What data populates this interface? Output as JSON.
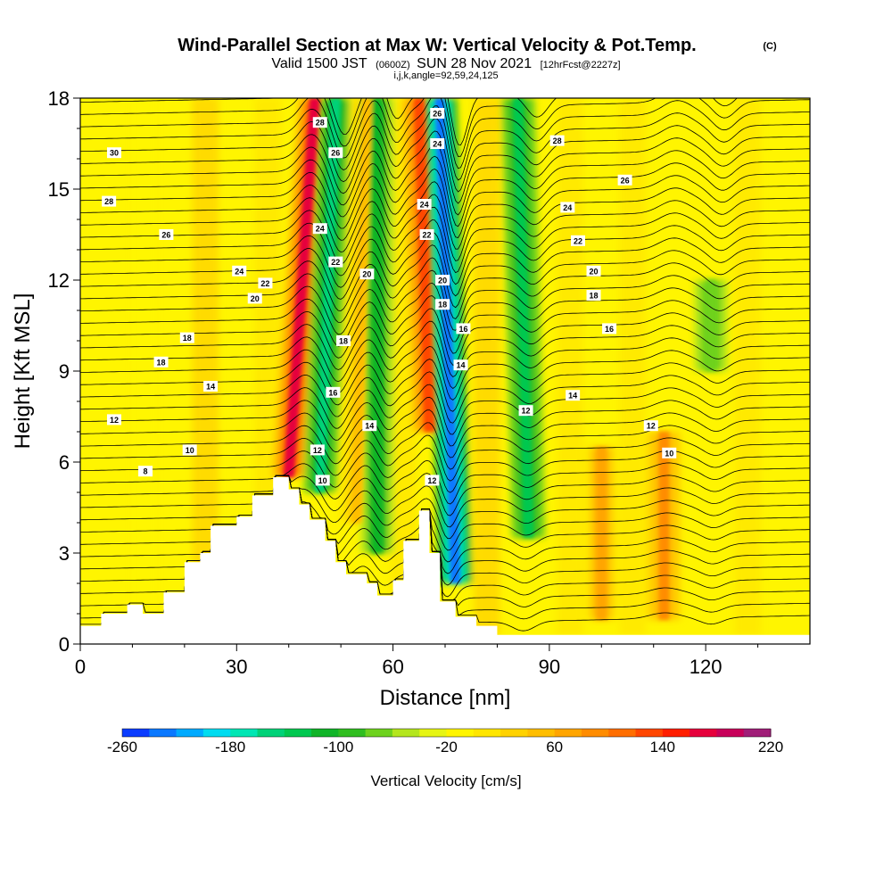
{
  "header": {
    "title": "Wind-Parallel Section at Max W: Vertical Velocity & Pot.Temp.",
    "title_tag": "(C)",
    "valid_prefix": "Valid 1500 JST",
    "valid_utc": "(0600Z)",
    "valid_date": "SUN 28 Nov 2021",
    "forecast": "[12hrFcst@2227z]",
    "indices": "i,j,k,angle=92,59,24,125"
  },
  "chart_data": {
    "type": "heatmap",
    "title": "Wind-Parallel Section at Max W: Vertical Velocity & Pot.Temp.",
    "xlabel": "Distance [nm]",
    "ylabel": "Height [Kft MSL]",
    "xlim": [
      0,
      140
    ],
    "ylim": [
      0,
      18
    ],
    "xticks": [
      0,
      30,
      60,
      90,
      120
    ],
    "yticks": [
      0,
      3,
      6,
      9,
      12,
      15,
      18
    ],
    "xtick_labels": [
      "0",
      "30",
      "60",
      "90",
      "120"
    ],
    "ytick_labels": [
      "0",
      "3",
      "6",
      "9",
      "12",
      "15",
      "18"
    ],
    "colorbar": {
      "label": "Vertical Velocity [cm/s]",
      "min": -260,
      "max": 220,
      "step": 20,
      "tick_values": [
        -260,
        -180,
        -100,
        -20,
        60,
        140,
        220
      ],
      "tick_labels": [
        "-260",
        "-180",
        "-100",
        "-20",
        "60",
        "140",
        "220"
      ],
      "colors": [
        "#0000ff",
        "#0a3cff",
        "#0a78ff",
        "#00aaff",
        "#00dcf0",
        "#00e6b4",
        "#00d278",
        "#00c850",
        "#10b428",
        "#30be20",
        "#6ed21e",
        "#b4e61e",
        "#e6f514",
        "#fff500",
        "#ffe600",
        "#ffd200",
        "#ffbe00",
        "#ffa500",
        "#ff8c00",
        "#ff6e00",
        "#ff4600",
        "#ff1e00",
        "#e6003c",
        "#c8005a",
        "#a01e78",
        "#6e1e82"
      ]
    },
    "terrain_profile": {
      "x": [
        0,
        4,
        4,
        9,
        9,
        12,
        12,
        16,
        16,
        20,
        20,
        23,
        23,
        25,
        25,
        30,
        30,
        33,
        33,
        37,
        37,
        40,
        40,
        42,
        42,
        44,
        44,
        47,
        47,
        49,
        49,
        51,
        51,
        55,
        55,
        57,
        57,
        60,
        60,
        62,
        62,
        65,
        65,
        67,
        67,
        69,
        69,
        72,
        72,
        76,
        76,
        80,
        80,
        140
      ],
      "height": [
        0.6,
        0.6,
        1.0,
        1.0,
        1.3,
        1.3,
        1.0,
        1.0,
        1.7,
        1.7,
        2.7,
        2.7,
        3.0,
        3.0,
        3.9,
        3.9,
        4.2,
        4.2,
        4.9,
        4.9,
        5.5,
        5.5,
        5.1,
        5.1,
        4.6,
        4.6,
        4.1,
        4.1,
        3.4,
        3.4,
        2.7,
        2.7,
        2.3,
        2.3,
        2.0,
        2.0,
        1.6,
        1.6,
        2.1,
        2.1,
        3.4,
        3.4,
        4.4,
        4.4,
        3.0,
        3.0,
        1.4,
        1.4,
        0.9,
        0.9,
        0.6,
        0.6,
        0.3,
        0.3
      ]
    },
    "vertical_velocity_features": [
      {
        "name": "updraft",
        "x_base": 40,
        "x_top": 45,
        "y_range": [
          5.5,
          18
        ],
        "w_peak": 180
      },
      {
        "name": "downdraft",
        "x_base": 46,
        "x_top": 49,
        "y_range": [
          5.0,
          18
        ],
        "w_peak": -140
      },
      {
        "name": "updraft",
        "x_base": 53,
        "x_top": 55,
        "y_range": [
          4.0,
          18
        ],
        "w_peak": 60
      },
      {
        "name": "downdraft",
        "x_base": 57,
        "x_top": 57,
        "y_range": [
          3.0,
          18
        ],
        "w_peak": -90
      },
      {
        "name": "updraft",
        "x_base": 67,
        "x_top": 65,
        "y_range": [
          7.0,
          18
        ],
        "w_peak": 150
      },
      {
        "name": "downdraft",
        "x_base": 72,
        "x_top": 69,
        "y_range": [
          2.0,
          18
        ],
        "w_peak": -220
      },
      {
        "name": "downdraft",
        "x_base": 86,
        "x_top": 84,
        "y_range": [
          3.5,
          18
        ],
        "w_peak": -110
      },
      {
        "name": "updraft",
        "x_base": 100,
        "x_top": 100,
        "y_range": [
          0.8,
          6.5
        ],
        "w_peak": 90
      },
      {
        "name": "updraft",
        "x_base": 112,
        "x_top": 112,
        "y_range": [
          0.8,
          7.0
        ],
        "w_peak": 110
      },
      {
        "name": "downdraft",
        "x_base": 121,
        "x_top": 121,
        "y_range": [
          9.0,
          12.0
        ],
        "w_peak": -60
      }
    ],
    "potential_temperature_contours": {
      "interval": 1,
      "labels": [
        {
          "text": "30",
          "x": 6.5,
          "y": 16.2
        },
        {
          "text": "28",
          "x": 5.5,
          "y": 14.6
        },
        {
          "text": "26",
          "x": 16.5,
          "y": 13.5
        },
        {
          "text": "24",
          "x": 30.5,
          "y": 12.3
        },
        {
          "text": "22",
          "x": 35.5,
          "y": 11.9
        },
        {
          "text": "20",
          "x": 33.5,
          "y": 11.4
        },
        {
          "text": "18",
          "x": 20.5,
          "y": 10.1
        },
        {
          "text": "18",
          "x": 15.5,
          "y": 9.3
        },
        {
          "text": "14",
          "x": 25.0,
          "y": 8.5
        },
        {
          "text": "12",
          "x": 6.5,
          "y": 7.4
        },
        {
          "text": "10",
          "x": 21.0,
          "y": 6.4
        },
        {
          "text": "8",
          "x": 12.5,
          "y": 5.7
        },
        {
          "text": "28",
          "x": 46.0,
          "y": 17.2
        },
        {
          "text": "26",
          "x": 49.0,
          "y": 16.2
        },
        {
          "text": "24",
          "x": 46.0,
          "y": 13.7
        },
        {
          "text": "22",
          "x": 49.0,
          "y": 12.6
        },
        {
          "text": "20",
          "x": 55.0,
          "y": 12.2
        },
        {
          "text": "18",
          "x": 50.5,
          "y": 10.0
        },
        {
          "text": "16",
          "x": 48.5,
          "y": 8.3
        },
        {
          "text": "14",
          "x": 55.5,
          "y": 7.2
        },
        {
          "text": "12",
          "x": 45.5,
          "y": 6.4
        },
        {
          "text": "10",
          "x": 46.5,
          "y": 5.4
        },
        {
          "text": "26",
          "x": 68.5,
          "y": 17.5
        },
        {
          "text": "24",
          "x": 68.5,
          "y": 16.5
        },
        {
          "text": "24",
          "x": 66.0,
          "y": 14.5
        },
        {
          "text": "22",
          "x": 66.5,
          "y": 13.5
        },
        {
          "text": "20",
          "x": 69.5,
          "y": 12.0
        },
        {
          "text": "18",
          "x": 69.5,
          "y": 11.2
        },
        {
          "text": "16",
          "x": 73.5,
          "y": 10.4
        },
        {
          "text": "14",
          "x": 73.0,
          "y": 9.2
        },
        {
          "text": "12",
          "x": 67.5,
          "y": 5.4
        },
        {
          "text": "12",
          "x": 85.5,
          "y": 7.7
        },
        {
          "text": "28",
          "x": 91.5,
          "y": 16.6
        },
        {
          "text": "26",
          "x": 104.5,
          "y": 15.3
        },
        {
          "text": "24",
          "x": 93.5,
          "y": 14.4
        },
        {
          "text": "22",
          "x": 95.5,
          "y": 13.3
        },
        {
          "text": "20",
          "x": 98.5,
          "y": 12.3
        },
        {
          "text": "18",
          "x": 98.5,
          "y": 11.5
        },
        {
          "text": "16",
          "x": 101.5,
          "y": 10.4
        },
        {
          "text": "14",
          "x": 94.5,
          "y": 8.2
        },
        {
          "text": "12",
          "x": 109.5,
          "y": 7.2
        },
        {
          "text": "10",
          "x": 113.0,
          "y": 6.3
        }
      ]
    }
  }
}
